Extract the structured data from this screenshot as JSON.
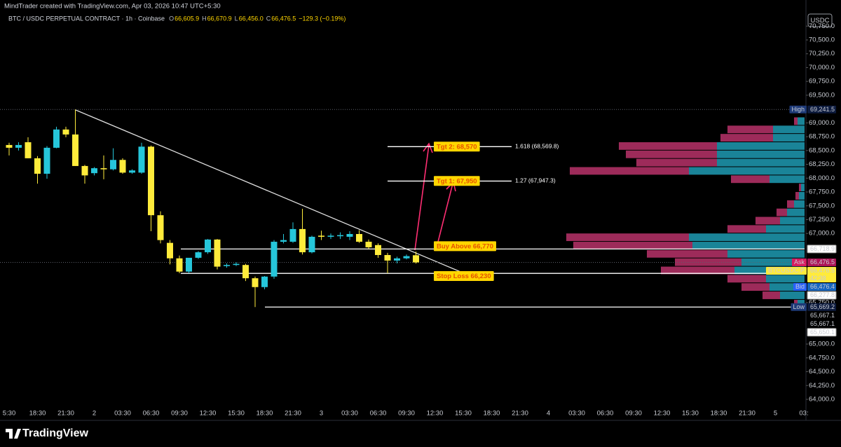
{
  "header": "MindTrader created with TradingView.com, Apr 03, 2026 10:47 UTC+5:30",
  "footer": "TradingView",
  "chart_data": {
    "type": "candlestick",
    "title": "BTC / USDC PERPETUAL CONTRACT · 1h · Coinbase",
    "ohlc": [
      {
        "key": "O",
        "text": "66,605.9"
      },
      {
        "key": "H",
        "text": "66,670.9"
      },
      {
        "key": "L",
        "text": "66,456.0"
      },
      {
        "key": "C",
        "text": "66,476.5"
      }
    ],
    "change": "−129.3 (−0.19%)",
    "currency": "USDC",
    "up_color": "#26c6da",
    "down_color": "#ffeb3b",
    "open": [
      68600,
      68550,
      68650,
      68360,
      68080,
      68550,
      68880,
      68790,
      68220,
      68090,
      68180,
      68160,
      68330,
      68100,
      68100,
      68570,
      67330,
      66830,
      66550,
      66310,
      66560,
      66660,
      66890,
      66410,
      66430,
      66430,
      66190,
      66030,
      66220,
      66850,
      66850,
      67080,
      66660,
      66960,
      66940,
      66950,
      66940,
      66990,
      66850,
      66790,
      66610,
      66510,
      66550,
      66605.9
    ],
    "high": [
      68640,
      68650,
      68740,
      68400,
      68580,
      68930,
      68930,
      69241.5,
      68240,
      68200,
      68410,
      68540,
      68360,
      68160,
      68640,
      68590,
      67400,
      66880,
      66600,
      66560,
      66680,
      66900,
      66900,
      66460,
      66480,
      66450,
      66220,
      66230,
      66880,
      66990,
      67200,
      67446,
      66960,
      67050,
      67000,
      67020,
      67040,
      67060,
      66890,
      66820,
      66650,
      66580,
      66620,
      66670.9
    ],
    "low": [
      68410,
      68500,
      68360,
      67900,
      67990,
      68540,
      68740,
      68220,
      67900,
      68050,
      67980,
      68140,
      68080,
      68080,
      68080,
      67040,
      66820,
      66440,
      66280,
      66280,
      66540,
      66630,
      66350,
      66380,
      66410,
      66140,
      65669.2,
      65990,
      66180,
      66820,
      66830,
      66620,
      66640,
      66880,
      66900,
      66900,
      66880,
      66830,
      66720,
      66560,
      66280,
      66460,
      66530,
      66456.0
    ],
    "close": [
      68550,
      68600,
      68360,
      68080,
      68550,
      68880,
      68790,
      68220,
      68050,
      68180,
      68160,
      68330,
      68100,
      68140,
      68570,
      67330,
      66880,
      66550,
      66310,
      66560,
      66660,
      66890,
      66400,
      66430,
      66450,
      66190,
      66030,
      66220,
      66850,
      66880,
      67080,
      66660,
      66940,
      66940,
      66960,
      66970,
      66990,
      66850,
      66750,
      66610,
      66510,
      66550,
      66590,
      66476.5
    ],
    "ylim": [
      63835,
      70994
    ],
    "yticks": [
      {
        "value": 70750,
        "label": "70,750.0"
      },
      {
        "value": 70500,
        "label": "70,500.0"
      },
      {
        "value": 70250,
        "label": "70,250.0"
      },
      {
        "value": 70000,
        "label": "70,000.0"
      },
      {
        "value": 69750,
        "label": "69,750.0"
      },
      {
        "value": 69500,
        "label": "69,500.0"
      },
      {
        "value": 69000,
        "label": "69,000.0"
      },
      {
        "value": 68750,
        "label": "68,750.0"
      },
      {
        "value": 68500,
        "label": "68,500.0"
      },
      {
        "value": 68250,
        "label": "68,250.0"
      },
      {
        "value": 68000,
        "label": "68,000.0"
      },
      {
        "value": 67750,
        "label": "67,750.0"
      },
      {
        "value": 67500,
        "label": "67,500.0"
      },
      {
        "value": 67250,
        "label": "67,250.0"
      },
      {
        "value": 67000,
        "label": "67,000.0"
      },
      {
        "value": 65750,
        "label": "65,750.0"
      },
      {
        "value": 65000,
        "label": "65,000.0"
      },
      {
        "value": 64750,
        "label": "64,750.0"
      },
      {
        "value": 64500,
        "label": "64,500.0"
      },
      {
        "value": 64250,
        "label": "64,250.0"
      },
      {
        "value": 64000,
        "label": "64,000.0"
      }
    ],
    "xticks": [
      "5:30",
      "18:30",
      "21:30",
      "2",
      "03:30",
      "06:30",
      "09:30",
      "12:30",
      "15:30",
      "18:30",
      "21:30",
      "3",
      "03:30",
      "06:30",
      "09:30",
      "12:30",
      "15:30",
      "18:30",
      "21:30",
      "4",
      "03:30",
      "06:30",
      "09:30",
      "12:30",
      "15:30",
      "18:30",
      "21:30",
      "5",
      "03:"
    ],
    "fib_levels": [
      {
        "value": 68569.8,
        "label": "1.618 (68,569.8)"
      },
      {
        "value": 67947.3,
        "label": "1.27 (67,947.3)"
      }
    ],
    "annotations": [
      {
        "value": 68570,
        "text": "Tgt 2: 68,570"
      },
      {
        "value": 67950,
        "text": "Tgt 1: 67,950"
      },
      {
        "value": 66770,
        "text": "Buy Above 66,770"
      },
      {
        "value": 66230,
        "text": "Stop Loss 66,230"
      }
    ],
    "badges": [
      {
        "tag": "High",
        "value": 69241.5,
        "label": "69,241.5",
        "color": "#1e3a78"
      },
      {
        "value": 66718.9,
        "label": "66,718.9"
      },
      {
        "tag": "Ask",
        "value": 66476.5,
        "label": "66,476.5",
        "color": "#d81b60"
      },
      {
        "tag": "BTCUSDC.P",
        "value": 66476.5,
        "label": "66,476.5",
        "sub": "42:38",
        "color": "#ffeb3b"
      },
      {
        "tag": "Bid",
        "value": 66476.4,
        "label": "66,476.4",
        "color": "#2962ff"
      },
      {
        "value": 66277.8,
        "label": "66,277.8"
      },
      {
        "tag": "Low",
        "value": 65669.2,
        "label": "65,669.2",
        "color": "#1e3a78"
      },
      {
        "value": 65667.1,
        "label": "65,667.1",
        "color": "#000000"
      },
      {
        "value": 65667.1,
        "label": "65,667.1",
        "color": "#000000"
      },
      {
        "value": 65650.1,
        "label": "65,650.1"
      }
    ],
    "volume_profile": {
      "buy_color": "#1e9bb3",
      "sell_color": "#b8336a",
      "prices": [
        69100,
        68950,
        68800,
        68650,
        68500,
        68350,
        68200,
        68050,
        67900,
        67750,
        67600,
        67450,
        67300,
        67150,
        67000,
        66850,
        66700,
        66550,
        66400,
        66250,
        66100,
        65950,
        65800
      ],
      "buy": [
        10,
        45,
        45,
        125,
        125,
        125,
        165,
        50,
        5,
        8,
        15,
        25,
        35,
        55,
        165,
        160,
        110,
        90,
        100,
        55,
        50,
        35,
        10
      ],
      "sell": [
        5,
        65,
        75,
        140,
        130,
        115,
        170,
        55,
        3,
        5,
        10,
        15,
        35,
        55,
        175,
        170,
        115,
        95,
        105,
        55,
        40,
        25,
        5
      ]
    }
  }
}
